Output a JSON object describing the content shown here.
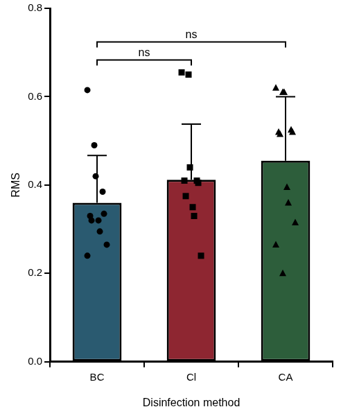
{
  "chart_data": {
    "type": "bar",
    "x_label": "Disinfection method",
    "y_label": "RMS",
    "categories": [
      "BC",
      "Cl",
      "CA"
    ],
    "values": [
      0.36,
      0.412,
      0.455
    ],
    "errors": [
      0.107,
      0.126,
      0.145
    ],
    "points": [
      [
        0.615,
        0.49,
        0.42,
        0.385,
        0.335,
        0.33,
        0.32,
        0.32,
        0.295,
        0.265,
        0.24
      ],
      [
        0.655,
        0.65,
        0.44,
        0.41,
        0.405,
        0.41,
        0.375,
        0.35,
        0.33,
        0.24
      ],
      [
        0.62,
        0.61,
        0.61,
        0.525,
        0.52,
        0.52,
        0.515,
        0.395,
        0.36,
        0.315,
        0.265,
        0.2
      ]
    ],
    "colors": [
      "#2a5a70",
      "#8e2631",
      "#2d5e3b"
    ],
    "markers": [
      "circle",
      "square",
      "triangle"
    ],
    "ylim": [
      0,
      0.8
    ],
    "yticks": [
      {
        "value": 0,
        "label": "0.0"
      },
      {
        "value": 0.2,
        "label": "0.2"
      },
      {
        "value": 0.4,
        "label": "0.4"
      },
      {
        "value": 0.6,
        "label": "0.6"
      },
      {
        "value": 0.8,
        "label": "0.8"
      }
    ],
    "grid": false,
    "annotations": [
      {
        "from": "BC",
        "to": "Cl",
        "text": "ns"
      },
      {
        "from": "BC",
        "to": "CA",
        "text": "ns"
      }
    ]
  }
}
